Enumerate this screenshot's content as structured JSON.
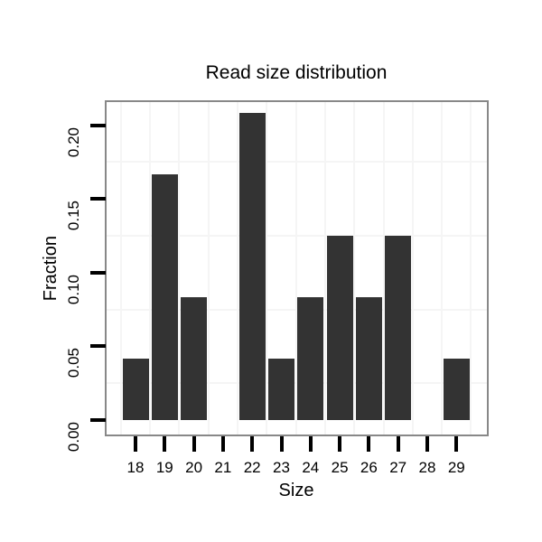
{
  "chart_data": {
    "type": "bar",
    "title": "Read size distribution",
    "xlabel": "Size",
    "ylabel": "Fraction",
    "categories": [
      "18",
      "19",
      "20",
      "21",
      "22",
      "23",
      "24",
      "25",
      "26",
      "27",
      "28",
      "29"
    ],
    "values": [
      0.0417,
      0.1667,
      0.0833,
      0,
      0.2083,
      0.0417,
      0.0833,
      0.125,
      0.0833,
      0.125,
      0,
      0.0417
    ],
    "y_tick_labels": [
      "0.00",
      "0.05",
      "0.10",
      "0.15",
      "0.20"
    ],
    "y_tick_values": [
      0,
      0.05,
      0.1,
      0.15,
      0.2
    ],
    "ylim": [
      -0.0104,
      0.2157
    ],
    "grid": "minor-only",
    "minor_y_values": [
      0.025,
      0.075,
      0.125,
      0.175
    ],
    "legend": "none",
    "colors": {
      "bar_fill": "#333333",
      "panel_border": "#888888",
      "gridline": "#f5f5f5",
      "tick": "#000000",
      "text": "#000000",
      "background": "#ffffff"
    }
  }
}
